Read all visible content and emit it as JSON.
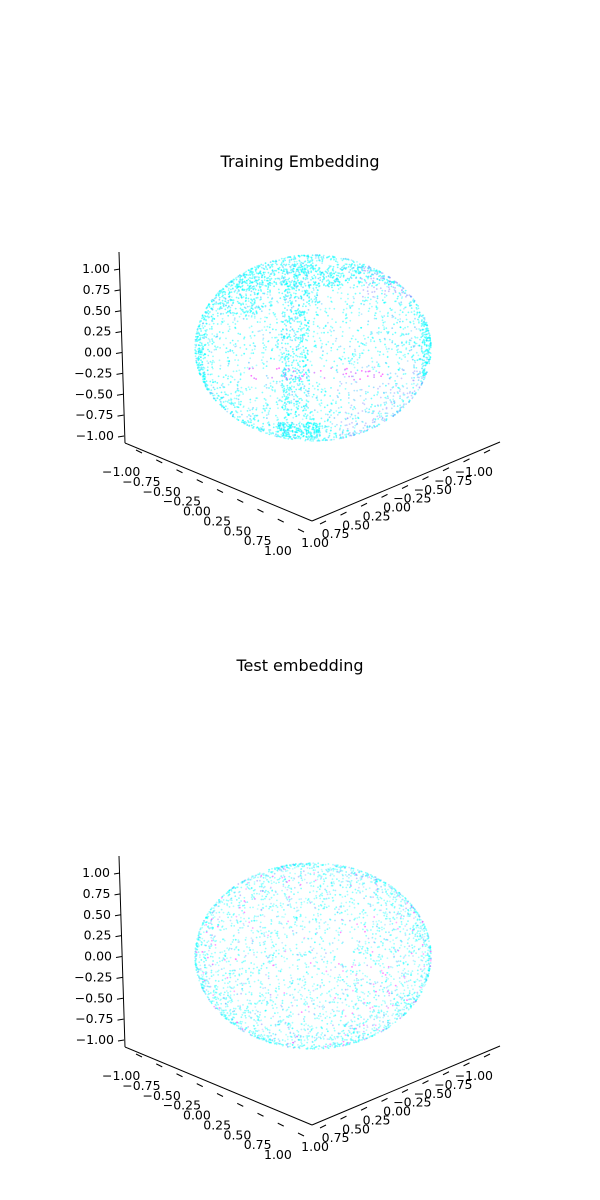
{
  "chart_data": [
    {
      "type": "scatter",
      "projection": "3d",
      "title": "Training Embedding",
      "x_ticks": [
        "−1.00",
        "−0.75",
        "−0.50",
        "−0.25",
        "0.00",
        "0.25",
        "0.50",
        "0.75",
        "1.00"
      ],
      "y_ticks": [
        "−1.00",
        "−0.75",
        "−0.50",
        "−0.25",
        "0.00",
        "0.25",
        "0.50",
        "0.75",
        "1.00"
      ],
      "z_ticks": [
        "−1.00",
        "−0.75",
        "−0.50",
        "−0.25",
        "0.00",
        "0.25",
        "0.50",
        "0.75",
        "1.00"
      ],
      "xlim": [
        -1,
        1
      ],
      "ylim": [
        -1,
        1
      ],
      "zlim": [
        -1,
        1
      ],
      "grid": false,
      "colormap": "cool",
      "point_colors": [
        "#00ffff",
        "#40bfff",
        "#8080ff",
        "#bf40ff",
        "#ff00ff"
      ],
      "distribution": "points on unit sphere, dense cyan clusters with a magenta band near z ≈ -0.1"
    },
    {
      "type": "scatter",
      "projection": "3d",
      "title": "Test embedding",
      "x_ticks": [
        "−1.00",
        "−0.75",
        "−0.50",
        "−0.25",
        "0.00",
        "0.25",
        "0.50",
        "0.75",
        "1.00"
      ],
      "y_ticks": [
        "−1.00",
        "−0.75",
        "−0.50",
        "−0.25",
        "0.00",
        "0.25",
        "0.50",
        "0.75",
        "1.00"
      ],
      "z_ticks": [
        "−1.00",
        "−0.75",
        "−0.50",
        "−0.25",
        "0.00",
        "0.25",
        "0.50",
        "0.75",
        "1.00"
      ],
      "xlim": [
        -1,
        1
      ],
      "ylim": [
        -1,
        1
      ],
      "zlim": [
        -1,
        1
      ],
      "grid": false,
      "colormap": "cool",
      "point_colors": [
        "#00ffff",
        "#40bfff",
        "#8080ff",
        "#bf40ff",
        "#ff00ff"
      ],
      "distribution": "points uniformly spread on unit sphere, mostly cyan"
    }
  ]
}
